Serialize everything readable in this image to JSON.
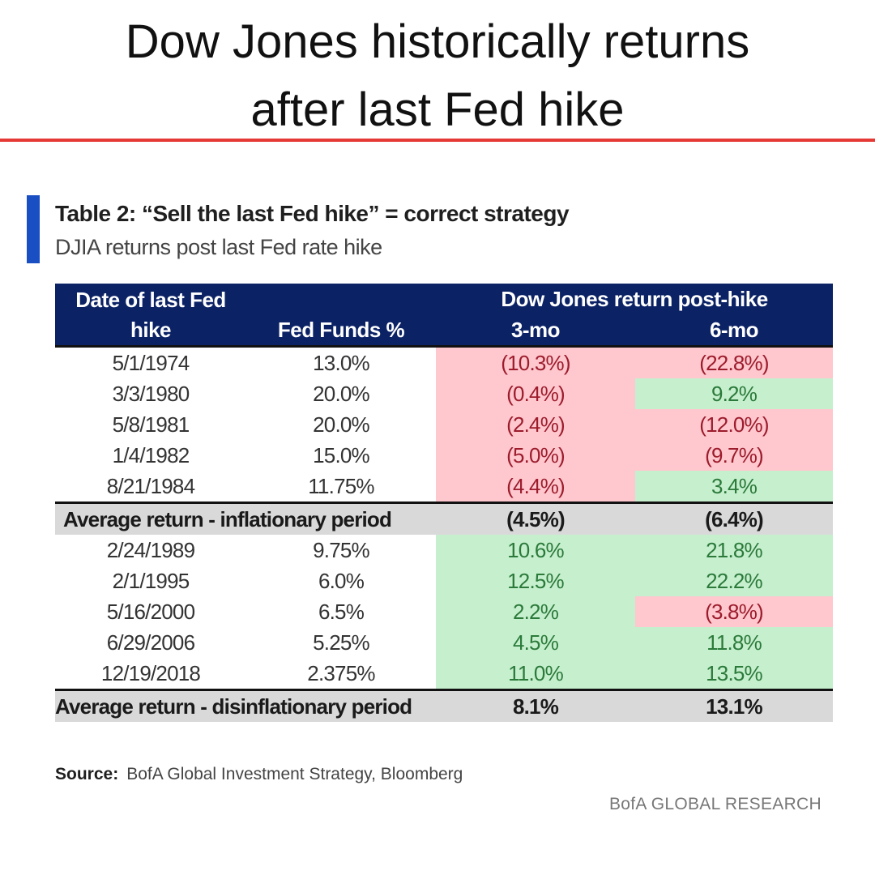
{
  "headline": {
    "line1": "Dow Jones historically returns",
    "line2": "after last Fed hike"
  },
  "table": {
    "title": "Table 2: “Sell the last Fed hike” = correct strategy",
    "subtitle": "DJIA returns post last Fed rate hike",
    "header": {
      "group": "Dow Jones return post-hike",
      "date_col": "Date of last Fed hike",
      "funds_col": "Fed Funds %",
      "col_3mo": "3-mo",
      "col_6mo": "6-mo"
    },
    "inflationary_rows": [
      {
        "date": "5/1/1974",
        "funds": "13.0%",
        "r3": "(10.3%)",
        "r3_sign": "neg",
        "r6": "(22.8%)",
        "r6_sign": "neg"
      },
      {
        "date": "3/3/1980",
        "funds": "20.0%",
        "r3": "(0.4%)",
        "r3_sign": "neg",
        "r6": "9.2%",
        "r6_sign": "pos"
      },
      {
        "date": "5/8/1981",
        "funds": "20.0%",
        "r3": "(2.4%)",
        "r3_sign": "neg",
        "r6": "(12.0%)",
        "r6_sign": "neg"
      },
      {
        "date": "1/4/1982",
        "funds": "15.0%",
        "r3": "(5.0%)",
        "r3_sign": "neg",
        "r6": "(9.7%)",
        "r6_sign": "neg"
      },
      {
        "date": "8/21/1984",
        "funds": "11.75%",
        "r3": "(4.4%)",
        "r3_sign": "neg",
        "r6": "3.4%",
        "r6_sign": "pos"
      }
    ],
    "inflationary_avg": {
      "label": "Average return - inflationary period",
      "r3": "(4.5%)",
      "r6": "(6.4%)"
    },
    "disinflationary_rows": [
      {
        "date": "2/24/1989",
        "funds": "9.75%",
        "r3": "10.6%",
        "r3_sign": "pos",
        "r6": "21.8%",
        "r6_sign": "pos"
      },
      {
        "date": "2/1/1995",
        "funds": "6.0%",
        "r3": "12.5%",
        "r3_sign": "pos",
        "r6": "22.2%",
        "r6_sign": "pos"
      },
      {
        "date": "5/16/2000",
        "funds": "6.5%",
        "r3": "2.2%",
        "r3_sign": "pos",
        "r6": "(3.8%)",
        "r6_sign": "neg"
      },
      {
        "date": "6/29/2006",
        "funds": "5.25%",
        "r3": "4.5%",
        "r3_sign": "pos",
        "r6": "11.8%",
        "r6_sign": "pos"
      },
      {
        "date": "12/19/2018",
        "funds": "2.375%",
        "r3": "11.0%",
        "r3_sign": "pos",
        "r6": "13.5%",
        "r6_sign": "pos"
      }
    ],
    "disinflationary_avg": {
      "label": "Average return - disinflationary period",
      "r3": "8.1%",
      "r6": "13.1%"
    }
  },
  "source": {
    "label": "Source:",
    "text": "BofA Global Investment Strategy, Bloomberg"
  },
  "brand": "BofA GLOBAL RESEARCH",
  "colors": {
    "header_bg": "#0b2265",
    "negative_bg": "#ffc7ce",
    "positive_bg": "#c6efce",
    "average_bg": "#d9d9d9",
    "accent_bar": "#1a4fc4",
    "rule": "#e53935"
  }
}
